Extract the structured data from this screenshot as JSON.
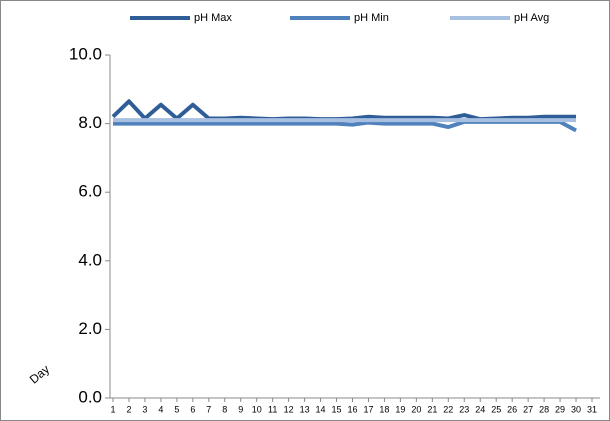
{
  "chart_data": {
    "type": "line",
    "x_label": "Day",
    "categories": [
      "1",
      "2",
      "3",
      "4",
      "5",
      "6",
      "7",
      "8",
      "9",
      "10",
      "11",
      "12",
      "13",
      "14",
      "15",
      "16",
      "17",
      "18",
      "19",
      "20",
      "21",
      "22",
      "23",
      "24",
      "25",
      "26",
      "27",
      "28",
      "29",
      "30",
      "31"
    ],
    "series": [
      {
        "name": "pH Max",
        "color": "#2f5d97",
        "values": [
          8.2,
          8.65,
          8.15,
          8.55,
          8.15,
          8.55,
          8.15,
          8.15,
          8.17,
          8.15,
          8.13,
          8.15,
          8.15,
          8.13,
          8.13,
          8.15,
          8.2,
          8.17,
          8.17,
          8.17,
          8.17,
          8.15,
          8.25,
          8.13,
          8.15,
          8.17,
          8.17,
          8.2,
          8.2,
          8.2,
          null
        ]
      },
      {
        "name": "pH Min",
        "color": "#4f81bd",
        "values": [
          8.0,
          8.0,
          8.0,
          8.0,
          8.0,
          8.0,
          8.0,
          8.0,
          8.0,
          8.0,
          8.0,
          8.0,
          8.0,
          8.0,
          8.0,
          7.97,
          8.03,
          8.0,
          8.0,
          8.0,
          8.0,
          7.9,
          8.05,
          8.05,
          8.05,
          8.05,
          8.05,
          8.05,
          8.05,
          7.8,
          null
        ]
      },
      {
        "name": "pH Avg",
        "color": "#a7bfe0",
        "values": [
          8.1,
          8.1,
          8.1,
          8.1,
          8.1,
          8.1,
          8.1,
          8.1,
          8.1,
          8.1,
          8.1,
          8.1,
          8.1,
          8.1,
          8.1,
          8.1,
          8.1,
          8.1,
          8.1,
          8.1,
          8.1,
          8.1,
          8.1,
          8.1,
          8.1,
          8.1,
          8.1,
          8.1,
          8.1,
          8.1,
          null
        ]
      }
    ],
    "ylim": [
      0,
      10
    ],
    "yticks": [
      {
        "value": 0,
        "label": "0.0"
      },
      {
        "value": 2,
        "label": "2.0"
      },
      {
        "value": 4,
        "label": "4.0"
      },
      {
        "value": 6,
        "label": "6.0"
      },
      {
        "value": 8,
        "label": "8.0"
      },
      {
        "value": 10,
        "label": "10.0"
      }
    ],
    "legend": "top"
  }
}
